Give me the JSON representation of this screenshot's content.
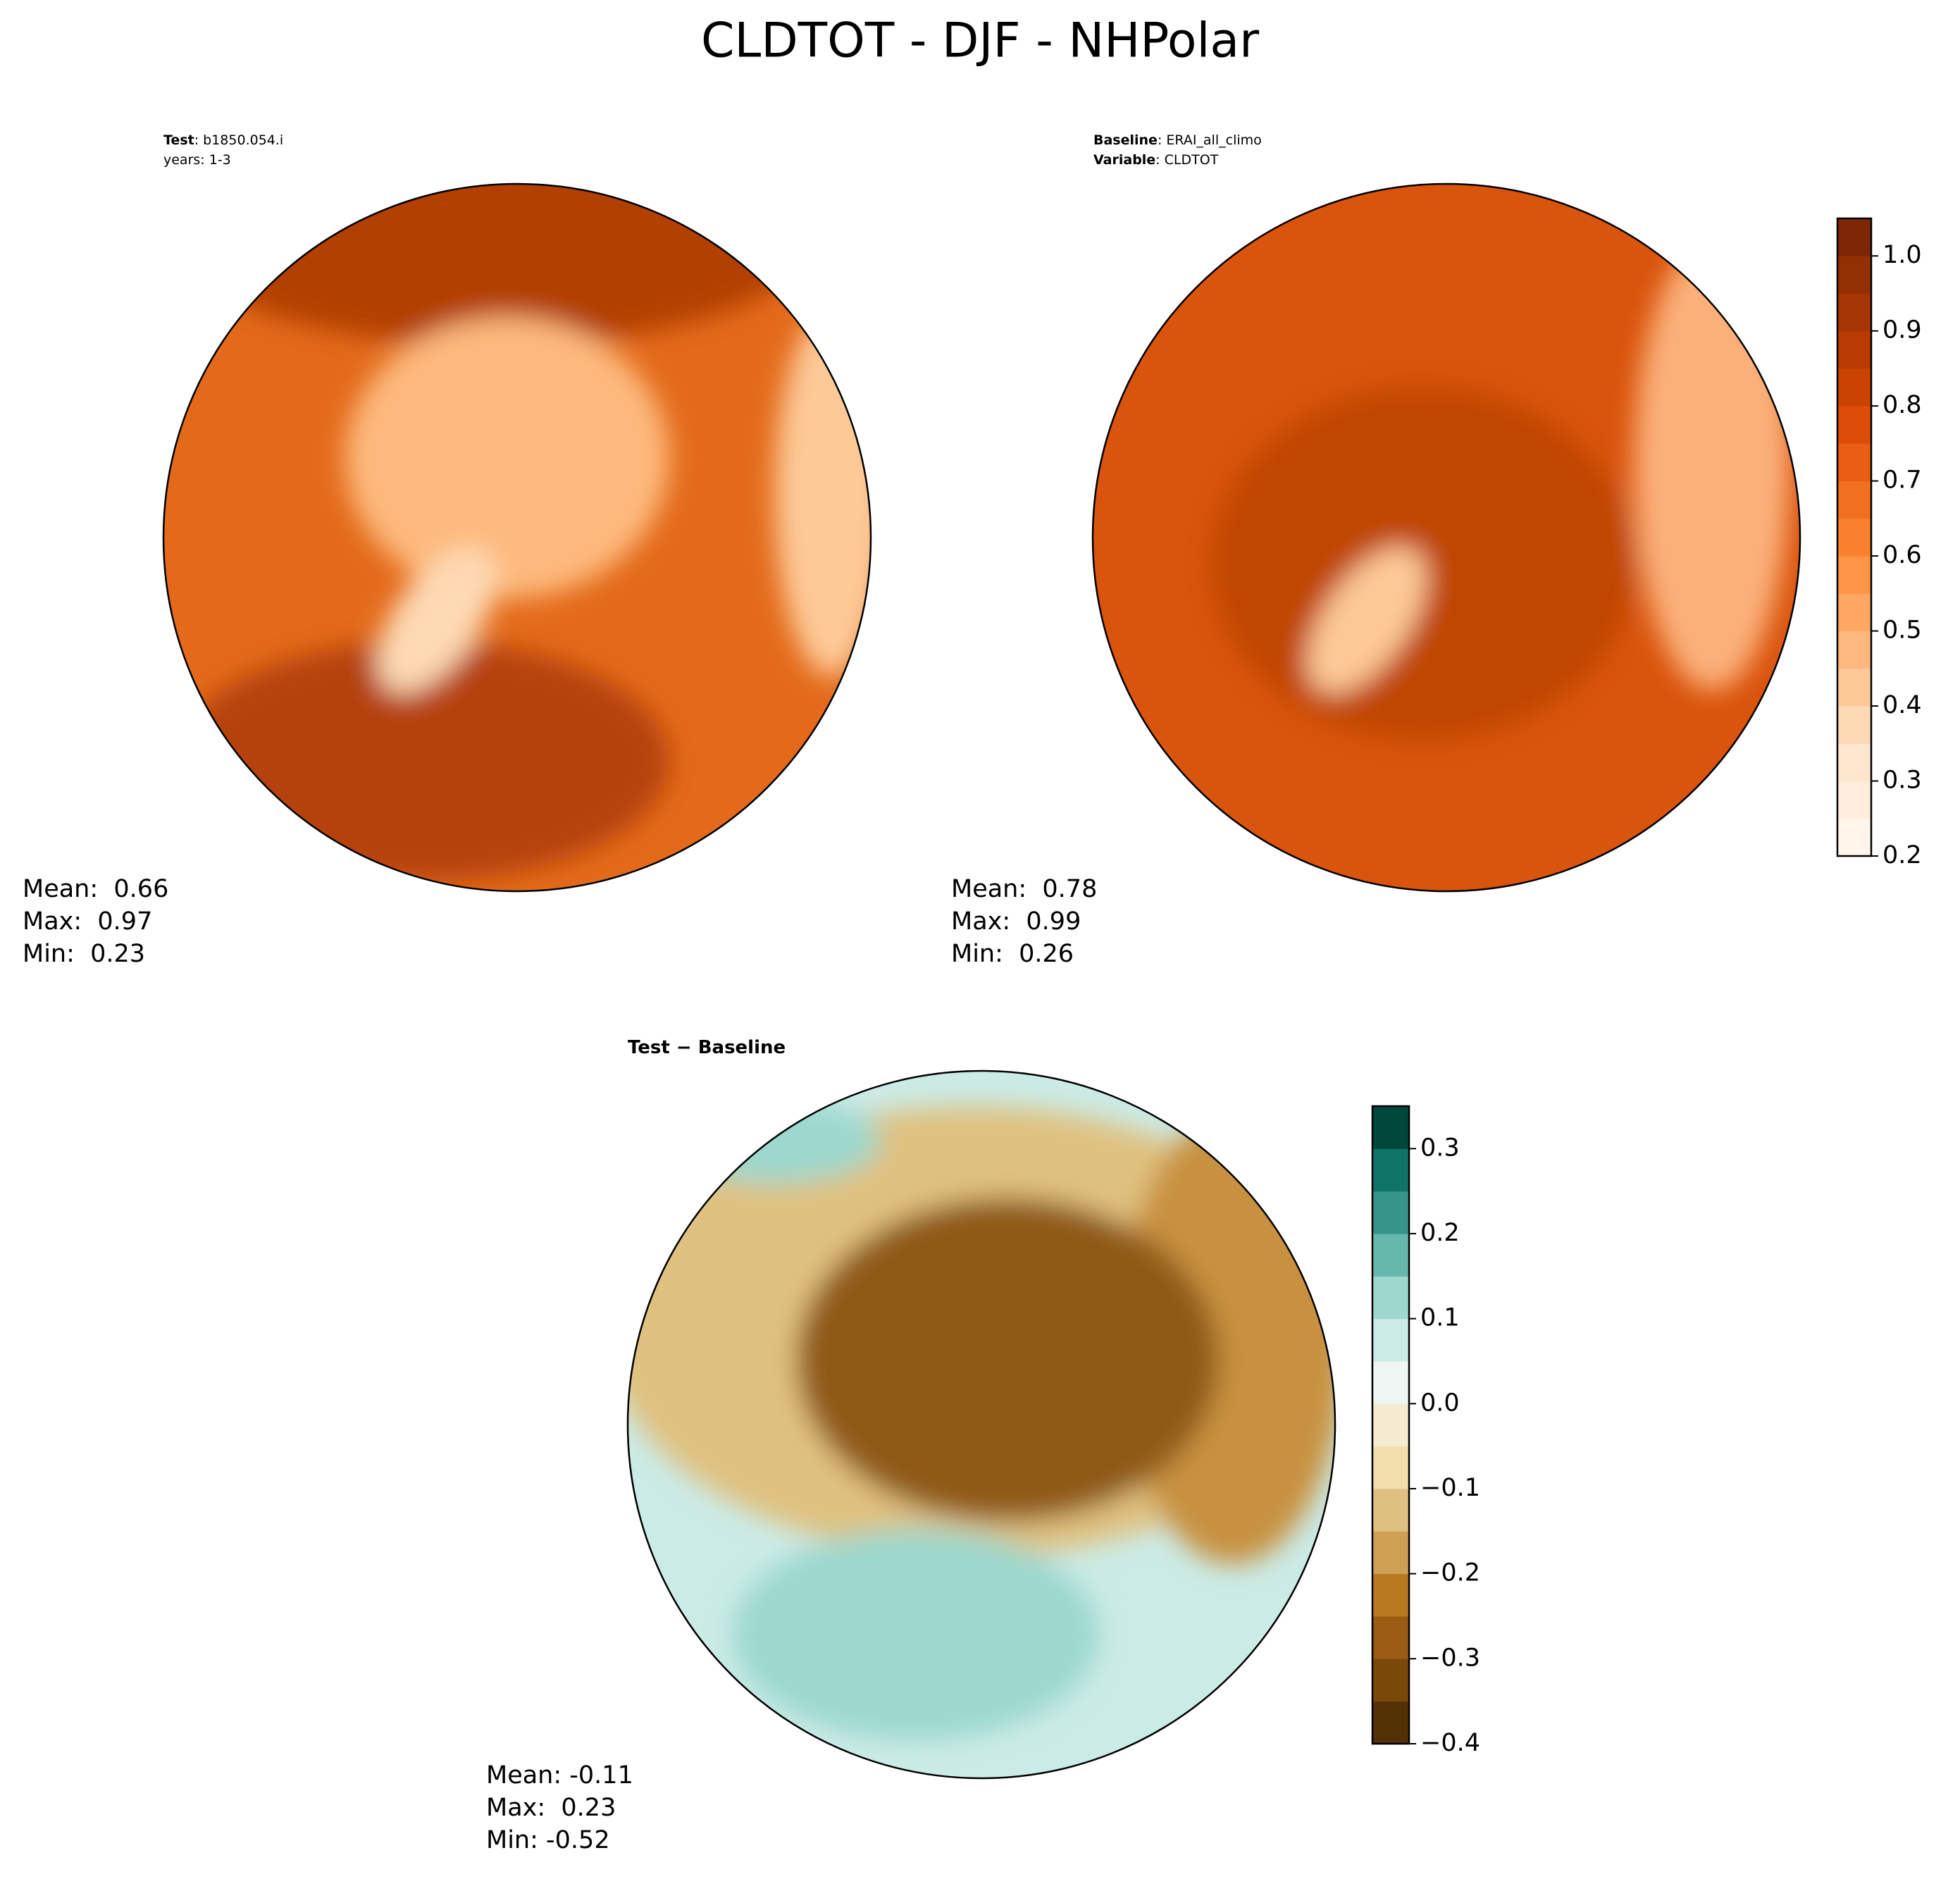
{
  "title": "CLDTOT - DJF - NHPolar",
  "panels": [
    {
      "label_lines": [
        {
          "bold": "Test",
          "text": ": b1850.054.i"
        },
        {
          "text": "years: 1-3"
        }
      ],
      "stats": [
        "Mean:  0.66",
        "Max:  0.97",
        "Min:  0.23"
      ]
    },
    {
      "label_lines": [
        {
          "bold": "Baseline",
          "text": ": ERAI_all_climo"
        },
        {
          "bold": "Variable",
          "text": ": CLDTOT"
        }
      ],
      "stats": [
        "Mean:  0.78",
        "Max:  0.99",
        "Min:  0.26"
      ]
    },
    {
      "label_lines": [
        {
          "bold": "Test − Baseline"
        }
      ],
      "stats": [
        "Mean: -0.11",
        "Max:  0.23",
        "Min: -0.52"
      ]
    }
  ],
  "colorbars": [
    {
      "clim": [
        0.2,
        1.05
      ],
      "ticks": [
        0.2,
        0.3,
        0.4,
        0.5,
        0.6,
        0.7,
        0.8,
        0.9,
        {
          "value": 1,
          "label": "1.0"
        }
      ],
      "colors": [
        "#fff5eb",
        "#feeddc",
        "#fee6ce",
        "#fdd9b4",
        "#fdc997",
        "#fdb97d",
        "#fda762",
        "#fd9446",
        "#f9812e",
        "#f16f20",
        "#e95e14",
        "#dd4d08",
        "#cb4301",
        "#b93a02",
        "#a63603",
        "#933003",
        "#7f2704"
      ]
    },
    {
      "clim": [
        -0.4,
        0.35
      ],
      "ticks": [
        {
          "value": -0.4,
          "label": "−0.4"
        },
        {
          "value": -0.3,
          "label": "−0.3"
        },
        {
          "value": -0.2,
          "label": "−0.2"
        },
        {
          "value": -0.1,
          "label": "−0.1"
        },
        {
          "value": 0,
          "label": "0.0"
        },
        0.1,
        0.2,
        0.3
      ],
      "colors": [
        "#543005",
        "#7a4809",
        "#9a5b12",
        "#b8791f",
        "#cfa053",
        "#dfc17f",
        "#f0deab",
        "#f5ebd0",
        "#eef6f4",
        "#cbebe6",
        "#9cd8cd",
        "#66b8ad",
        "#35958b",
        "#0f7368",
        "#00483c"
      ]
    }
  ]
}
